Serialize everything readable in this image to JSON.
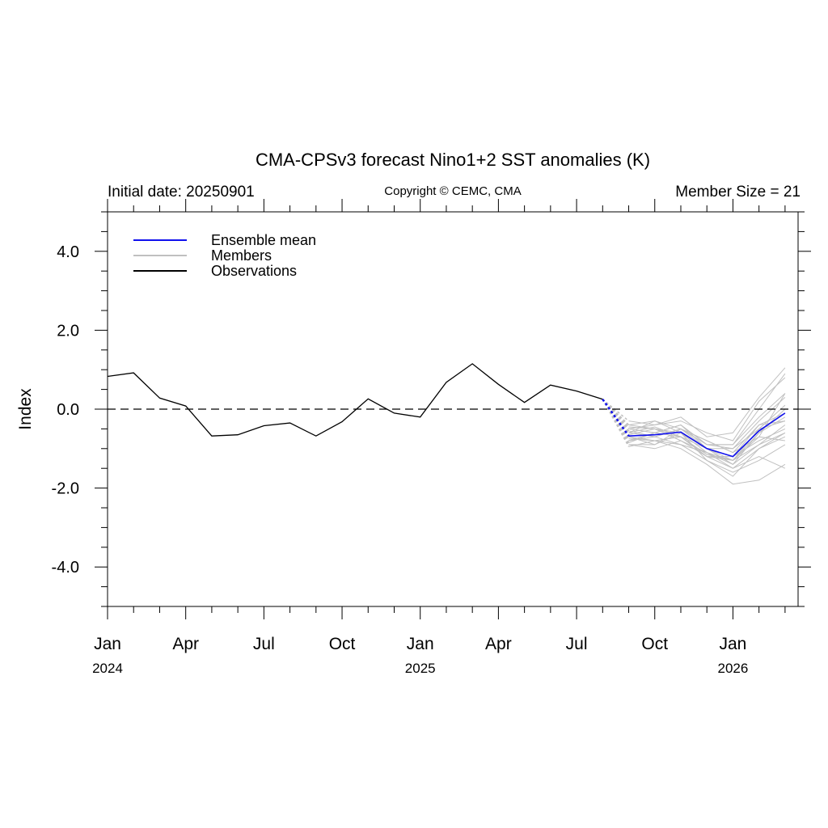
{
  "chart_data": {
    "type": "line",
    "title": "CMA-CPSv3 forecast Nino1+2 SST anomalies (K)",
    "initial_date_label": "Initial date: 20250901",
    "copyright": "Copyright © CEMC, CMA",
    "member_size_label": "Member Size = 21",
    "ylabel": "Index",
    "xlabel": "",
    "ylim": [
      -5,
      5
    ],
    "y_ticks": [
      4,
      2,
      0,
      -2,
      -4
    ],
    "y_tick_labels": [
      "4.0",
      "2.0",
      "0.0",
      "-2.0",
      "-4.0"
    ],
    "x_tick_labels": [
      {
        "month_index": 0,
        "label": "Jan",
        "year": "2024"
      },
      {
        "month_index": 3,
        "label": "Apr",
        "year": ""
      },
      {
        "month_index": 6,
        "label": "Jul",
        "year": ""
      },
      {
        "month_index": 9,
        "label": "Oct",
        "year": ""
      },
      {
        "month_index": 12,
        "label": "Jan",
        "year": "2025"
      },
      {
        "month_index": 15,
        "label": "Apr",
        "year": ""
      },
      {
        "month_index": 18,
        "label": "Jul",
        "year": ""
      },
      {
        "month_index": 21,
        "label": "Oct",
        "year": ""
      },
      {
        "month_index": 24,
        "label": "Jan",
        "year": "2026"
      }
    ],
    "x_range_months": [
      0,
      26.5
    ],
    "zero_line": {
      "y": 0,
      "style": "dashed"
    },
    "legend": {
      "placement": "top-left",
      "entries": [
        {
          "label": "Ensemble mean",
          "color": "#1010ee"
        },
        {
          "label": "Members",
          "color": "#c0c0c0"
        },
        {
          "label": "Observations",
          "color": "#000000"
        }
      ]
    },
    "observations": {
      "name": "Observations",
      "color": "#000000",
      "x": [
        "2024-01",
        "2024-02",
        "2024-03",
        "2024-04",
        "2024-05",
        "2024-06",
        "2024-07",
        "2024-08",
        "2024-09",
        "2024-10",
        "2024-11",
        "2024-12",
        "2025-01",
        "2025-02",
        "2025-03",
        "2025-04",
        "2025-05",
        "2025-06",
        "2025-07",
        "2025-08"
      ],
      "values": [
        0.83,
        0.92,
        0.28,
        0.08,
        -0.68,
        -0.65,
        -0.42,
        -0.35,
        -0.68,
        -0.32,
        0.26,
        -0.1,
        -0.2,
        0.68,
        1.15,
        0.63,
        0.17,
        0.61,
        0.46,
        0.25
      ]
    },
    "ensemble_mean": {
      "name": "Ensemble mean",
      "color": "#1010ee",
      "x": [
        "2025-09",
        "2025-10",
        "2025-11",
        "2025-12",
        "2026-01",
        "2026-02",
        "2026-03"
      ],
      "values": [
        -0.68,
        -0.65,
        -0.58,
        -1.0,
        -1.2,
        -0.55,
        -0.1
      ]
    },
    "members": {
      "name": "Members",
      "color": "#c0c0c0",
      "x": [
        "2025-09",
        "2025-10",
        "2025-11",
        "2025-12",
        "2026-01",
        "2026-02",
        "2026-03"
      ],
      "values": [
        [
          -0.3,
          -0.4,
          -0.2,
          -0.7,
          -0.6,
          0.3,
          1.05
        ],
        [
          -0.5,
          -0.6,
          -0.4,
          -0.9,
          -0.9,
          0.0,
          0.9
        ],
        [
          -0.8,
          -0.7,
          -0.9,
          -1.1,
          -1.3,
          -0.7,
          0.4
        ],
        [
          -0.4,
          -0.5,
          -0.7,
          -1.2,
          -1.5,
          -1.0,
          -0.6
        ],
        [
          -0.9,
          -0.9,
          -0.5,
          -0.8,
          -1.1,
          -0.4,
          -0.3
        ],
        [
          -0.6,
          -0.3,
          -0.6,
          -1.3,
          -1.6,
          -1.3,
          -0.9
        ],
        [
          -0.7,
          -0.8,
          -1.0,
          -1.4,
          -1.9,
          -1.8,
          -1.4
        ],
        [
          -0.5,
          -0.4,
          -0.3,
          -0.6,
          -0.8,
          0.2,
          0.8
        ],
        [
          -0.95,
          -0.8,
          -0.7,
          -1.0,
          -1.3,
          -0.9,
          -0.6
        ],
        [
          -0.6,
          -0.7,
          -0.5,
          -1.0,
          -1.4,
          -0.6,
          -0.2
        ],
        [
          -0.8,
          -0.6,
          -0.4,
          -0.9,
          -1.0,
          -0.3,
          0.3
        ],
        [
          -0.45,
          -0.5,
          -0.8,
          -1.2,
          -1.2,
          -0.8,
          -0.5
        ],
        [
          -0.7,
          -0.9,
          -0.6,
          -1.1,
          -1.5,
          -1.2,
          -1.5
        ],
        [
          -0.55,
          -0.7,
          -0.5,
          -0.8,
          -1.1,
          -0.7,
          -0.8
        ],
        [
          -0.85,
          -0.6,
          -0.7,
          -1.2,
          -1.3,
          -0.5,
          0.1
        ],
        [
          -0.4,
          -0.3,
          -0.5,
          -0.9,
          -0.9,
          -0.2,
          0.4
        ],
        [
          -0.75,
          -0.8,
          -0.9,
          -1.3,
          -1.7,
          -1.0,
          -0.7
        ],
        [
          -0.65,
          -0.5,
          -0.6,
          -1.0,
          -1.2,
          -0.4,
          -0.1
        ],
        [
          -0.9,
          -1.0,
          -0.8,
          -1.1,
          -1.4,
          -0.9,
          -0.4
        ],
        [
          -0.5,
          -0.6,
          -0.4,
          -1.0,
          -1.0,
          -0.5,
          -0.3
        ],
        [
          -0.6,
          -0.45,
          -0.7,
          -1.15,
          -1.3,
          -0.6,
          0.0
        ]
      ]
    }
  }
}
